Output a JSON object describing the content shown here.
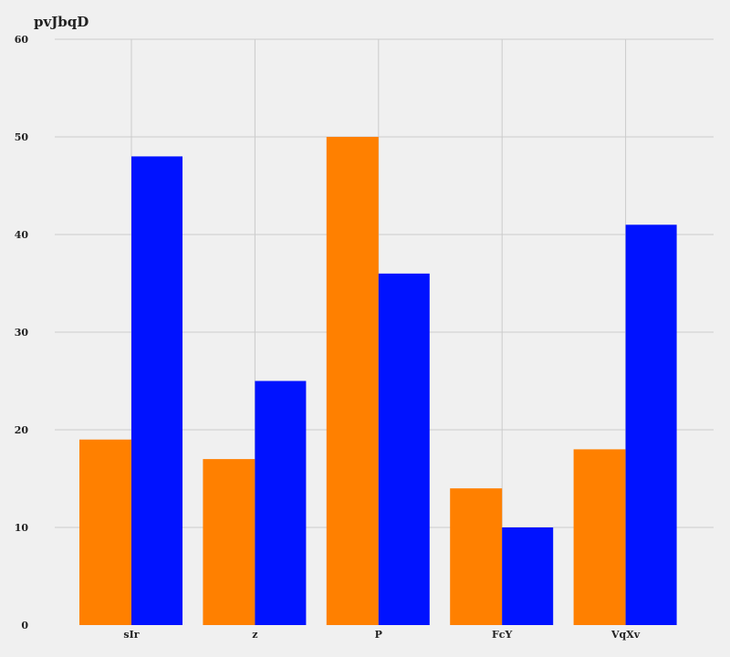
{
  "chart_data": {
    "type": "bar",
    "title": "pvJbqD",
    "xlabel": "",
    "ylabel": "",
    "categories": [
      "sIr",
      "z",
      "P",
      "FcY",
      "VqXv"
    ],
    "series": [
      {
        "values": [
          19,
          17,
          50,
          14,
          18
        ],
        "color": "#ff8000"
      },
      {
        "values": [
          48,
          25,
          36,
          10,
          41
        ],
        "color": "#0012ff"
      }
    ],
    "ylim": [
      0,
      60
    ],
    "yticks": [
      0,
      10,
      20,
      30,
      40,
      50,
      60
    ],
    "grid": true,
    "background": "#f0f0f0"
  }
}
